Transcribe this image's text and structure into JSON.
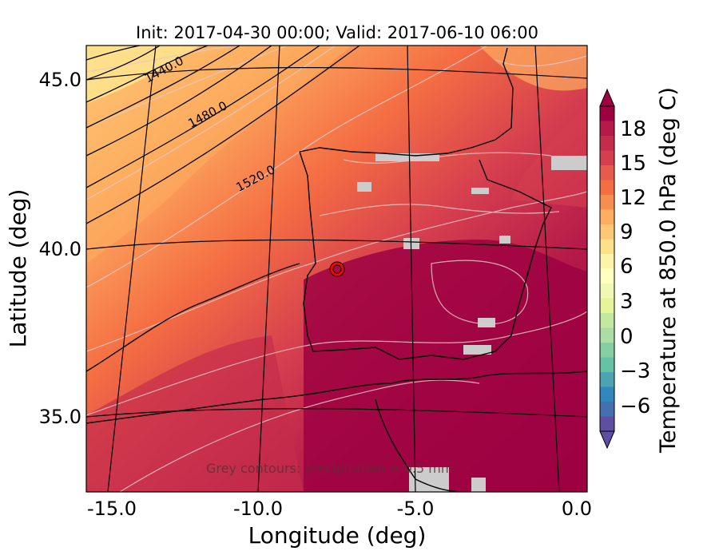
{
  "title": "Init: 2017-04-30 00:00; Valid: 2017-06-10 06:00",
  "axes": {
    "xlabel": "Longitude (deg)",
    "ylabel": "Latitude (deg)",
    "xticks": [
      "-15.0",
      "-10.0",
      "-5.0",
      "0.0"
    ],
    "yticks": [
      "45.0",
      "40.0",
      "35.0"
    ]
  },
  "colorbar": {
    "label": "Temperature at 850.0 hPa (deg C)",
    "ticks": [
      "18",
      "15",
      "12",
      "9",
      "6",
      "3",
      "0",
      "−3",
      "−6"
    ],
    "colors": [
      "#9e0142",
      "#b51a49",
      "#c42c4b",
      "#d53e4f",
      "#e65b4a",
      "#f46d43",
      "#f88d52",
      "#fdae61",
      "#fdc776",
      "#fee08b",
      "#fff3aa",
      "#ffffbf",
      "#f0f9b4",
      "#e6f598",
      "#c3e89f",
      "#abdda4",
      "#86cfa5",
      "#66c2a5",
      "#4ea3b2",
      "#3288bd",
      "#4570b0",
      "#5e4fa2"
    ]
  },
  "contour_labels": [
    "1440.0",
    "1480.0",
    "1520.0"
  ],
  "annotation": "Grey contours: precipitation > 0.5 mm",
  "colors": {
    "hot": "#9e0142",
    "warm": "#d53e4f",
    "orange": "#f46d43",
    "light_orange": "#fdae61",
    "pale": "#fee08b",
    "precip": "#cccccc",
    "marker": "#ff0000"
  }
}
